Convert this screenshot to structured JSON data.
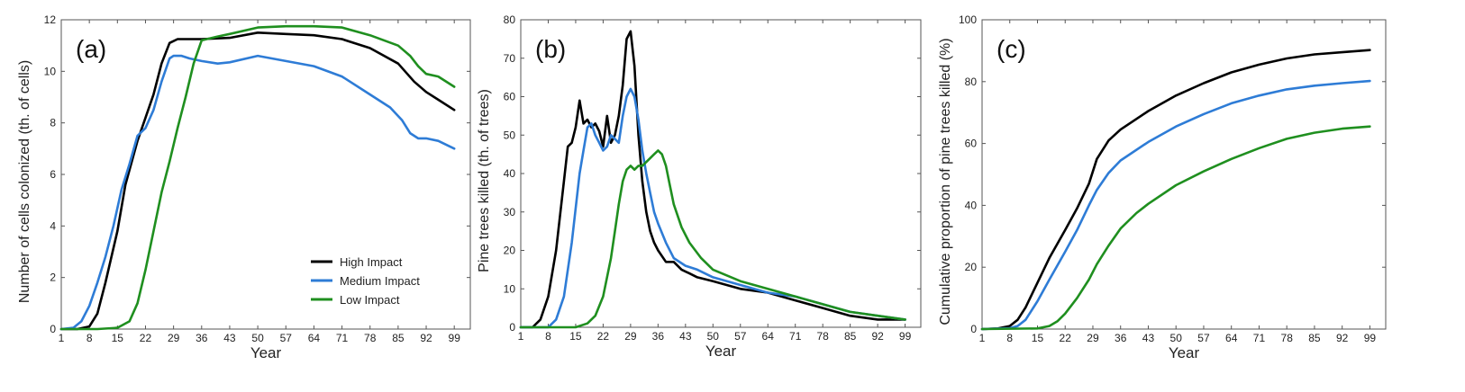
{
  "colors": {
    "high": "#000000",
    "medium": "#2E7CD6",
    "low": "#1F8F1F"
  },
  "chart_data": [
    {
      "type": "line",
      "panel_label": "(a)",
      "xlabel": "Year",
      "ylabel": "Number of cells colonized (th. of cells)",
      "xlim": [
        1,
        103
      ],
      "ylim": [
        0,
        12
      ],
      "xticks": [
        1,
        8,
        15,
        22,
        29,
        36,
        43,
        50,
        57,
        64,
        71,
        78,
        85,
        92,
        99
      ],
      "yticks": [
        0,
        2,
        4,
        6,
        8,
        10,
        12
      ],
      "legend": {
        "position": "bottom-right",
        "entries": [
          "High Impact",
          "Medium  Impact",
          "Low  Impact"
        ]
      },
      "series": [
        {
          "name": "High Impact",
          "color_key": "high",
          "x": [
            1,
            5,
            8,
            10,
            12,
            15,
            17,
            20,
            22,
            24,
            26,
            28,
            30,
            33,
            36,
            43,
            50,
            57,
            64,
            71,
            78,
            85,
            89,
            92,
            95,
            99
          ],
          "y": [
            0,
            0,
            0.1,
            0.6,
            1.8,
            3.8,
            5.6,
            7.3,
            8.2,
            9.1,
            10.3,
            11.1,
            11.25,
            11.25,
            11.25,
            11.3,
            11.5,
            11.45,
            11.4,
            11.25,
            10.9,
            10.3,
            9.6,
            9.2,
            8.9,
            8.5
          ]
        },
        {
          "name": "Medium  Impact",
          "color_key": "medium",
          "x": [
            1,
            4,
            6,
            8,
            10,
            12,
            14,
            16,
            18,
            20,
            22,
            24,
            26,
            28,
            29,
            31,
            33,
            36,
            40,
            43,
            50,
            57,
            64,
            71,
            78,
            83,
            86,
            88,
            90,
            92,
            95,
            99
          ],
          "y": [
            0,
            0.05,
            0.3,
            0.9,
            1.8,
            2.8,
            4.0,
            5.4,
            6.4,
            7.5,
            7.8,
            8.5,
            9.6,
            10.5,
            10.6,
            10.6,
            10.5,
            10.4,
            10.3,
            10.35,
            10.6,
            10.4,
            10.2,
            9.8,
            9.1,
            8.6,
            8.1,
            7.6,
            7.4,
            7.4,
            7.3,
            7.0
          ]
        },
        {
          "name": "Low  Impact",
          "color_key": "low",
          "x": [
            1,
            10,
            15,
            18,
            20,
            22,
            24,
            26,
            28,
            30,
            32,
            34,
            36,
            40,
            43,
            50,
            57,
            64,
            71,
            78,
            85,
            88,
            90,
            92,
            95,
            99
          ],
          "y": [
            0,
            0,
            0.05,
            0.3,
            1.0,
            2.3,
            3.8,
            5.3,
            6.5,
            7.8,
            9.0,
            10.3,
            11.2,
            11.35,
            11.45,
            11.7,
            11.75,
            11.75,
            11.7,
            11.4,
            11.0,
            10.6,
            10.2,
            9.9,
            9.8,
            9.4
          ]
        }
      ]
    },
    {
      "type": "line",
      "panel_label": "(b)",
      "xlabel": "Year",
      "ylabel": "Pine trees killed (th. of trees)",
      "xlim": [
        1,
        103
      ],
      "ylim": [
        0,
        80
      ],
      "xticks": [
        1,
        8,
        15,
        22,
        29,
        36,
        43,
        50,
        57,
        64,
        71,
        78,
        85,
        92,
        99
      ],
      "yticks": [
        0,
        10,
        20,
        30,
        40,
        50,
        60,
        70,
        80
      ],
      "series": [
        {
          "name": "High Impact",
          "color_key": "high",
          "x": [
            1,
            4,
            6,
            8,
            10,
            12,
            13,
            14,
            15,
            16,
            17,
            18,
            19,
            20,
            21,
            22,
            23,
            24,
            25,
            26,
            27,
            28,
            29,
            30,
            31,
            32,
            33,
            34,
            35,
            36,
            38,
            40,
            42,
            44,
            46,
            50,
            57,
            64,
            71,
            78,
            85,
            92,
            99
          ],
          "y": [
            0,
            0,
            2,
            8,
            20,
            38,
            47,
            48,
            52,
            59,
            53,
            54,
            52,
            53,
            51,
            47,
            55,
            48,
            50,
            55,
            63,
            75,
            77,
            68,
            50,
            38,
            30,
            25,
            22,
            20,
            17,
            17,
            15,
            14,
            13,
            12,
            10,
            9,
            7,
            5,
            3,
            2,
            2
          ]
        },
        {
          "name": "Medium  Impact",
          "color_key": "medium",
          "x": [
            1,
            8,
            10,
            12,
            14,
            16,
            17,
            18,
            19,
            20,
            21,
            22,
            23,
            24,
            25,
            26,
            27,
            28,
            29,
            30,
            31,
            32,
            33,
            34,
            35,
            36,
            38,
            40,
            43,
            46,
            50,
            57,
            64,
            71,
            78,
            85,
            92,
            99
          ],
          "y": [
            0,
            0,
            2,
            8,
            22,
            40,
            46,
            52,
            53,
            50,
            48,
            46,
            47,
            50,
            49,
            48,
            55,
            60,
            62,
            60,
            54,
            46,
            40,
            35,
            30,
            27,
            22,
            18,
            16,
            15,
            13,
            11,
            9,
            8,
            6,
            4,
            3,
            2
          ]
        },
        {
          "name": "Low  Impact",
          "color_key": "low",
          "x": [
            1,
            15,
            18,
            20,
            22,
            24,
            25,
            26,
            27,
            28,
            29,
            30,
            31,
            32,
            33,
            34,
            35,
            36,
            37,
            38,
            39,
            40,
            42,
            44,
            47,
            50,
            57,
            64,
            71,
            78,
            85,
            92,
            99
          ],
          "y": [
            0,
            0,
            1,
            3,
            8,
            18,
            25,
            32,
            38,
            41,
            42,
            41,
            42,
            42,
            43,
            44,
            45,
            46,
            45,
            42,
            37,
            32,
            26,
            22,
            18,
            15,
            12,
            10,
            8,
            6,
            4,
            3,
            2
          ]
        }
      ]
    },
    {
      "type": "line",
      "panel_label": "(c)",
      "xlabel": "Year",
      "ylabel": "Cumulative proportion of pine trees killed (%)",
      "xlim": [
        1,
        103
      ],
      "ylim": [
        0,
        100
      ],
      "xticks": [
        1,
        8,
        15,
        22,
        29,
        36,
        43,
        50,
        57,
        64,
        71,
        78,
        85,
        92,
        99
      ],
      "yticks": [
        0,
        20,
        40,
        60,
        80,
        100
      ],
      "series": [
        {
          "name": "High Impact",
          "color_key": "high",
          "x": [
            1,
            5,
            8,
            10,
            12,
            15,
            18,
            22,
            25,
            28,
            30,
            33,
            36,
            43,
            50,
            57,
            64,
            71,
            78,
            85,
            92,
            99
          ],
          "y": [
            0,
            0.2,
            1,
            3,
            7,
            15,
            23,
            32,
            39,
            47,
            55,
            61,
            64.5,
            70.5,
            75.5,
            79.5,
            83,
            85.5,
            87.5,
            88.8,
            89.5,
            90.2
          ]
        },
        {
          "name": "Medium  Impact",
          "color_key": "medium",
          "x": [
            1,
            8,
            10,
            12,
            15,
            18,
            22,
            25,
            28,
            30,
            33,
            36,
            43,
            50,
            57,
            64,
            71,
            78,
            85,
            92,
            99
          ],
          "y": [
            0,
            0.3,
            1,
            3,
            9,
            16,
            25,
            32,
            40,
            45,
            50.5,
            54.5,
            60.5,
            65.5,
            69.5,
            73,
            75.5,
            77.5,
            78.7,
            79.5,
            80.2
          ]
        },
        {
          "name": "Low  Impact",
          "color_key": "low",
          "x": [
            1,
            15,
            18,
            20,
            22,
            25,
            28,
            30,
            33,
            36,
            40,
            43,
            50,
            57,
            64,
            71,
            78,
            85,
            92,
            99
          ],
          "y": [
            0,
            0.2,
            1,
            2.5,
            5,
            10,
            16,
            21,
            27,
            32.5,
            37.5,
            40.5,
            46.5,
            51,
            55,
            58.5,
            61.5,
            63.5,
            64.8,
            65.5
          ]
        }
      ]
    }
  ]
}
